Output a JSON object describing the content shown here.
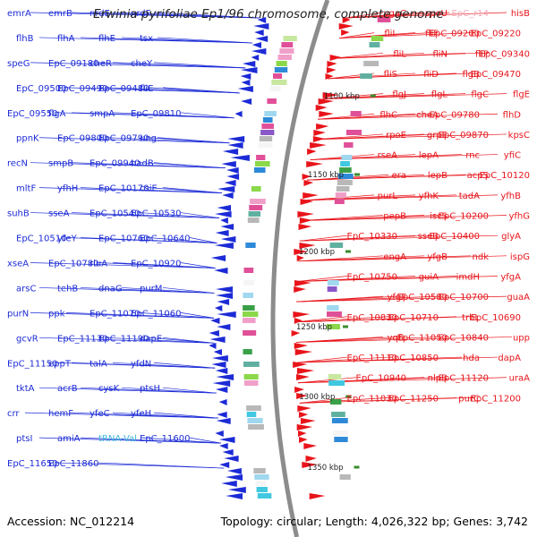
{
  "header": {
    "title": "Erwinia pyrifoliae Ep1/96 chromosome, complete genome"
  },
  "footer": {
    "accession": "Accession: NC_012214",
    "summary": "Topology: circular; Length: 4,026,322 bp; Genes: 3,742"
  },
  "colors": {
    "reverse_strand": "#1c2bd6",
    "forward_strand": "#e8141a",
    "backbone": "#8c8c8c",
    "rna_label": "#3cb8d8",
    "faded_label": "#f2a9b6",
    "ticks": "#3a8c2e"
  },
  "scale_ticks": [
    "1100 kbp",
    "1150 kbp",
    "1200 kbp",
    "1250 kbp",
    "1300 kbp",
    "1350 kbp"
  ],
  "left_genes": [
    "emrA",
    "emrB",
    "nrdE",
    "nrdF",
    "flhB",
    "flhA",
    "flhE",
    "tsx",
    "speG",
    "EpC_09180",
    "cheR",
    "cheY",
    "EpC_09500",
    "EpC_09490",
    "EpC_09480",
    "fliE",
    "EpC_09550",
    "flgA",
    "smpA",
    "EpC_09810",
    "ppnK",
    "EpC_09800",
    "EpC_09790",
    "ung",
    "recN",
    "smpB",
    "EpC_09940",
    "nadB",
    "mltF",
    "yfhH",
    "EpC_10170",
    "csiE",
    "suhB",
    "sseA",
    "EpC_10540",
    "EpC_10530",
    "EpC_10510",
    "yfeY",
    "EpC_10760",
    "EpC_10640",
    "xseA",
    "EpC_10780",
    "rluA",
    "EpC_10920",
    "arsC",
    "tehB",
    "dnaG",
    "purM",
    "purN",
    "ppk",
    "EpC_11070",
    "EpC_11060",
    "gcvR",
    "EpC_11130",
    "EpC_11190",
    "dapE",
    "EpC_11150",
    "eppT",
    "talA",
    "yfdN",
    "tktA",
    "acrB",
    "cysK",
    "ptsH",
    "crr",
    "hemF",
    "yfeC",
    "yfeH",
    "ptsI",
    "amiA",
    "tRNA-Val",
    "EpC_11600",
    "EpC_11650",
    "EpC_11860"
  ],
  "right_genes": [
    "hisB",
    "EpC_r14",
    "spoU",
    "ygaC",
    "EpC_09220",
    "EpC_09200",
    "fliF",
    "fliL",
    "EpC_09340",
    "fliP",
    "fliN",
    "fliL",
    "EpC_09470",
    "flgB",
    "fliD",
    "fliS",
    "flgE",
    "flgC",
    "flgL",
    "flgJ",
    "flhD",
    "EpC_09780",
    "cheA",
    "flhC",
    "kpsC",
    "EpC_09870",
    "grpE",
    "rpoE",
    "yfiC",
    "rnc",
    "lepA",
    "rseA",
    "EpC_10120",
    "acpS",
    "lepB",
    "era",
    "yfhB",
    "tadA",
    "yfhK",
    "purL",
    "yfhG",
    "EpC_10200",
    "iscS",
    "pepB",
    "glyA",
    "EpC_10400",
    "sseB",
    "EpC_10330",
    "ispG",
    "ndk",
    "yfgB",
    "engA",
    "yfgA",
    "imdH",
    "guiA",
    "EpC_10750",
    "guaA",
    "EpC_10700",
    "EpC_10580",
    "yfgF",
    "EpC_10690",
    "trbL",
    "EpC_10710",
    "EpC_10830",
    "upp",
    "EpC_10840",
    "EpC_11050",
    "yqfL",
    "dapA",
    "hda",
    "EpC_10850",
    "EpC_11110",
    "uraA",
    "EpC_11120",
    "nlpB",
    "EpC_10940",
    "EpC_11200",
    "purC",
    "EpC_11250",
    "EpC_11030"
  ]
}
